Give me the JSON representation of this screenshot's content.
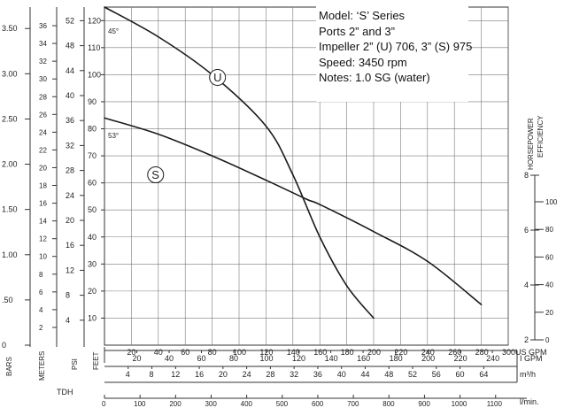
{
  "chart_data": {
    "type": "line",
    "title": "",
    "xlabel": "US GPM",
    "ylabel": "FEET",
    "xlim": [
      0,
      300
    ],
    "ylim": [
      0,
      125
    ],
    "grid": true,
    "x_ticks": [
      20,
      40,
      60,
      80,
      100,
      120,
      140,
      160,
      180,
      200,
      220,
      240,
      260,
      280,
      300
    ],
    "y_ticks": [
      10,
      20,
      30,
      40,
      50,
      60,
      70,
      80,
      90,
      100,
      110,
      120
    ],
    "series": [
      {
        "name": "U",
        "x": [
          0,
          40,
          80,
          120,
          140,
          160,
          180,
          200
        ],
        "y": [
          125,
          114,
          100,
          81,
          63,
          40,
          22,
          10
        ]
      },
      {
        "name": "S",
        "x": [
          0,
          40,
          80,
          120,
          150,
          160,
          200,
          240,
          280
        ],
        "y": [
          84,
          78,
          70,
          61,
          54,
          52,
          42,
          31,
          15
        ]
      }
    ],
    "curve_labels": {
      "U": "U",
      "S": "S"
    },
    "secondary_axes": {
      "bars": {
        "label": "BARS",
        "ticks": [
          "0",
          ".50",
          "1.00",
          "1.50",
          "2.00",
          "2.50",
          "3.00",
          "3.50"
        ]
      },
      "meters": {
        "label": "METERS",
        "ticks": [
          "2",
          "4",
          "6",
          "8",
          "10",
          "12",
          "14",
          "16",
          "18",
          "20",
          "22",
          "24",
          "26",
          "28",
          "30",
          "32",
          "34",
          "36"
        ]
      },
      "psi": {
        "label": "PSI",
        "ticks": [
          "4",
          "8",
          "12",
          "16",
          "20",
          "24",
          "28",
          "32",
          "36",
          "40",
          "44",
          "48",
          "52"
        ]
      },
      "horsepower": {
        "label": "HORSEPOWER",
        "ticks": [
          "2",
          "4",
          "6",
          "8"
        ]
      },
      "efficiency": {
        "label": "EFFICIENCY",
        "ticks": [
          "0",
          "20",
          "40",
          "60",
          "80",
          "100"
        ]
      },
      "tdh_label": "TDH",
      "igpm": {
        "label": "I GPM",
        "ticks": [
          "20",
          "40",
          "60",
          "80",
          "100",
          "120",
          "140",
          "160",
          "180",
          "200",
          "220",
          "240"
        ]
      },
      "m3h": {
        "label": "m³/h",
        "ticks": [
          "4",
          "8",
          "12",
          "16",
          "20",
          "24",
          "28",
          "32",
          "36",
          "40",
          "44",
          "48",
          "52",
          "56",
          "60",
          "64"
        ]
      },
      "lmin": {
        "label": "l/min.",
        "ticks": [
          "0",
          "100",
          "200",
          "300",
          "400",
          "500",
          "600",
          "700",
          "800",
          "900",
          "1000",
          "1100"
        ]
      }
    },
    "efficiency_marks": [
      "45°",
      "53°"
    ]
  },
  "info_box": {
    "line1": "Model: ‘S’ Series",
    "line2": "Ports 2” and 3”",
    "line3": "Impeller 2” (U) 706, 3” (S) 975",
    "line4": "Speed: 3450 rpm",
    "line5": "Notes: 1.0 SG (water)"
  }
}
